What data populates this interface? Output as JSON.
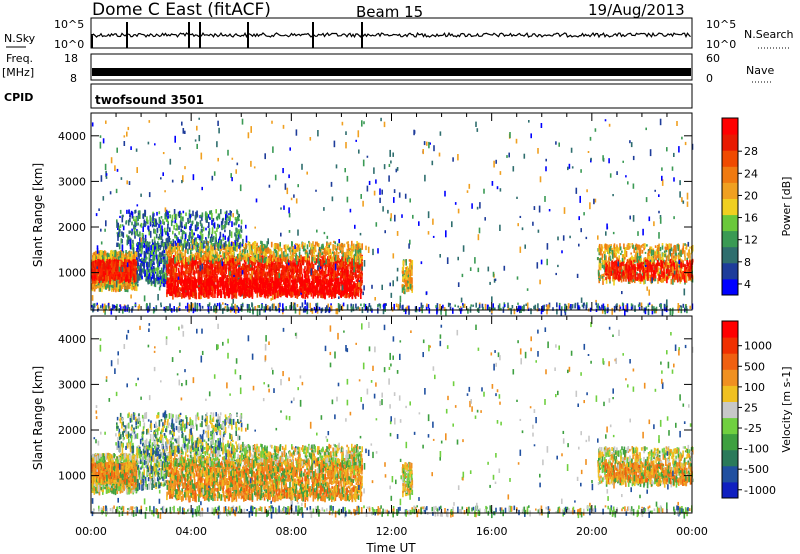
{
  "header": {
    "title": "Dome C East (fitACF)",
    "beam": "Beam 15",
    "date": "19/Aug/2013"
  },
  "top_panels": {
    "nsky": {
      "label": "N.Sky",
      "right_label": "N.Search",
      "ticks": [
        "10^5",
        "10^0"
      ],
      "right_ticks": [
        "10^5",
        "10^0"
      ]
    },
    "freq": {
      "label_line1": "Freq.",
      "label_line2": "[MHz]",
      "ticks": [
        "18",
        "8"
      ],
      "right_ticks": [
        "60",
        "0"
      ],
      "right_label": "Nave"
    },
    "cpid": {
      "label": "CPID",
      "value": "twofsound 3501"
    }
  },
  "chart_data": [
    {
      "type": "heatmap",
      "name": "Power",
      "ylabel": "Slant Range [km]",
      "xlabel": "Time UT",
      "x_ticks": [
        "00:00",
        "04:00",
        "08:00",
        "12:00",
        "16:00",
        "20:00",
        "00:00"
      ],
      "xlim_hours": [
        0,
        24
      ],
      "y_ticks": [
        1000,
        2000,
        3000,
        4000
      ],
      "ylim": [
        180,
        4500
      ],
      "colorbar": {
        "label": "Power [dB]",
        "ticks": [
          "28",
          "24",
          "20",
          "16",
          "12",
          "8",
          "4"
        ],
        "colors": [
          "#0000ff",
          "#1e3c9a",
          "#2f6e6e",
          "#3a9a54",
          "#6ac83a",
          "#f0d020",
          "#f0a020",
          "#f07a10",
          "#f04a00",
          "#e81a00",
          "#ff0000"
        ]
      }
    },
    {
      "type": "heatmap",
      "name": "Velocity",
      "ylabel": "Slant Range [km]",
      "xlabel": "Time UT",
      "x_ticks": [
        "00:00",
        "04:00",
        "08:00",
        "12:00",
        "16:00",
        "20:00",
        "00:00"
      ],
      "xlim_hours": [
        0,
        24
      ],
      "y_ticks": [
        1000,
        2000,
        3000,
        4000
      ],
      "ylim": [
        180,
        4500
      ],
      "colorbar": {
        "label": "Velocity [m s-1]",
        "ticks": [
          "1000",
          "500",
          "100",
          "25",
          "-25",
          "-100",
          "-500",
          "-1000"
        ],
        "colors": [
          "#1020c0",
          "#2050a0",
          "#2a7a5a",
          "#3ea040",
          "#70d040",
          "#c8c8c8",
          "#f0c020",
          "#f09020",
          "#f06010",
          "#f03000",
          "#ff0000"
        ]
      }
    }
  ]
}
